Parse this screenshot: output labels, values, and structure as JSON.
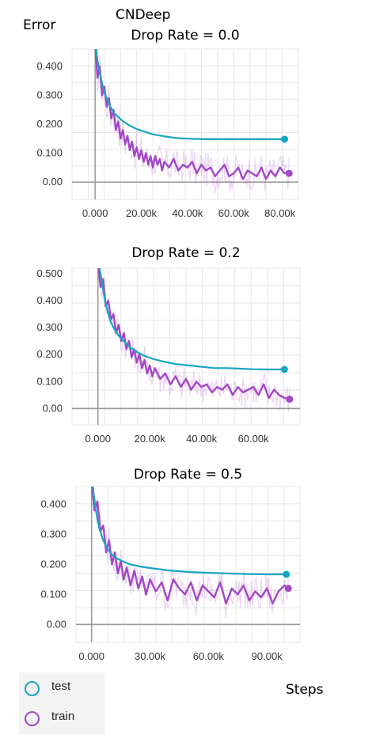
{
  "figure": {
    "suptitle": "CNDeep",
    "ylabel": "Error",
    "xlabel": "Steps"
  },
  "legend": {
    "items": [
      {
        "label": "test",
        "color": "#17a5c2"
      },
      {
        "label": "train",
        "color": "#a347c4"
      }
    ]
  },
  "chart_data": [
    {
      "type": "line",
      "title": "Drop Rate = 0.0",
      "xlim": [
        -10000,
        88000
      ],
      "ylim": [
        -0.06,
        0.46
      ],
      "xticks": [
        0,
        20000,
        40000,
        60000,
        80000
      ],
      "xtick_labels": [
        "0.000",
        "20.00k",
        "40.00k",
        "60.00k",
        "80.00k"
      ],
      "yticks": [
        0.0,
        0.1,
        0.2,
        0.3,
        0.4
      ],
      "ytick_labels": [
        "0.00",
        "0.100",
        "0.200",
        "0.300",
        "0.400"
      ],
      "grid": true,
      "series": [
        {
          "name": "test",
          "color": "#17a5c2",
          "x": [
            0,
            1000,
            2000,
            3000,
            4000,
            5000,
            6000,
            8000,
            10000,
            12000,
            15000,
            18000,
            21000,
            25000,
            30000,
            35000,
            40000,
            50000,
            60000,
            70000,
            80000,
            82000
          ],
          "y": [
            0.5,
            0.42,
            0.38,
            0.34,
            0.31,
            0.29,
            0.27,
            0.24,
            0.225,
            0.21,
            0.195,
            0.183,
            0.175,
            0.165,
            0.158,
            0.152,
            0.15,
            0.148,
            0.148,
            0.148,
            0.148,
            0.148
          ]
        },
        {
          "name": "train",
          "color": "#a347c4",
          "x": [
            0,
            1000,
            2000,
            3000,
            4000,
            5000,
            6000,
            7000,
            8000,
            9000,
            10000,
            11000,
            12000,
            13000,
            14000,
            15000,
            16000,
            17000,
            18000,
            19000,
            20000,
            21000,
            22000,
            23000,
            24000,
            25000,
            26000,
            27000,
            28000,
            29000,
            30000,
            32000,
            34000,
            36000,
            38000,
            40000,
            42000,
            44000,
            46000,
            48000,
            50000,
            52000,
            54000,
            56000,
            58000,
            60000,
            62000,
            64000,
            66000,
            68000,
            70000,
            72000,
            74000,
            76000,
            78000,
            80000,
            82000,
            84000
          ],
          "y": [
            0.48,
            0.36,
            0.4,
            0.3,
            0.33,
            0.26,
            0.29,
            0.22,
            0.25,
            0.18,
            0.21,
            0.15,
            0.18,
            0.13,
            0.16,
            0.11,
            0.14,
            0.09,
            0.12,
            0.08,
            0.11,
            0.07,
            0.1,
            0.06,
            0.09,
            0.05,
            0.09,
            0.06,
            0.08,
            0.04,
            0.07,
            0.05,
            0.08,
            0.04,
            0.06,
            0.05,
            0.07,
            0.03,
            0.06,
            0.04,
            0.05,
            0.02,
            0.04,
            0.06,
            0.02,
            0.03,
            0.05,
            0.01,
            0.04,
            0.03,
            0.02,
            0.05,
            0.01,
            0.04,
            0.02,
            0.05,
            0.03,
            0.03
          ]
        }
      ]
    },
    {
      "type": "line",
      "title": "Drop Rate = 0.2",
      "xlim": [
        -10000,
        78000
      ],
      "ylim": [
        -0.06,
        0.52
      ],
      "xticks": [
        0,
        20000,
        40000,
        60000
      ],
      "xtick_labels": [
        "0.000",
        "20.00k",
        "40.00k",
        "60.00k"
      ],
      "yticks": [
        0.0,
        0.1,
        0.2,
        0.3,
        0.4,
        0.5
      ],
      "ytick_labels": [
        "0.00",
        "0.100",
        "0.200",
        "0.300",
        "0.400",
        "0.500"
      ],
      "grid": true,
      "series": [
        {
          "name": "test",
          "color": "#17a5c2",
          "x": [
            0,
            1000,
            2000,
            3000,
            4000,
            5000,
            6000,
            8000,
            10000,
            12000,
            15000,
            18000,
            21000,
            25000,
            30000,
            35000,
            40000,
            45000,
            50000,
            55000,
            60000,
            65000,
            70000,
            72000
          ],
          "y": [
            0.55,
            0.5,
            0.44,
            0.39,
            0.35,
            0.32,
            0.3,
            0.27,
            0.25,
            0.23,
            0.21,
            0.195,
            0.185,
            0.175,
            0.165,
            0.16,
            0.155,
            0.15,
            0.15,
            0.148,
            0.146,
            0.145,
            0.145,
            0.145
          ]
        },
        {
          "name": "train",
          "color": "#a347c4",
          "x": [
            0,
            1000,
            2000,
            3000,
            4000,
            5000,
            6000,
            7000,
            8000,
            9000,
            10000,
            11000,
            12000,
            13000,
            14000,
            15000,
            16000,
            17000,
            18000,
            19000,
            20000,
            21000,
            22000,
            24000,
            26000,
            28000,
            30000,
            32000,
            34000,
            36000,
            38000,
            40000,
            42000,
            44000,
            46000,
            48000,
            50000,
            52000,
            54000,
            56000,
            58000,
            60000,
            62000,
            64000,
            66000,
            68000,
            70000,
            72000,
            74000
          ],
          "y": [
            0.55,
            0.45,
            0.48,
            0.38,
            0.4,
            0.33,
            0.35,
            0.28,
            0.31,
            0.25,
            0.28,
            0.22,
            0.25,
            0.19,
            0.22,
            0.17,
            0.2,
            0.15,
            0.18,
            0.13,
            0.16,
            0.12,
            0.15,
            0.11,
            0.13,
            0.09,
            0.12,
            0.08,
            0.11,
            0.07,
            0.1,
            0.08,
            0.09,
            0.06,
            0.08,
            0.07,
            0.09,
            0.05,
            0.08,
            0.06,
            0.07,
            0.08,
            0.05,
            0.09,
            0.04,
            0.07,
            0.05,
            0.04,
            0.035
          ]
        }
      ]
    },
    {
      "type": "line",
      "title": "Drop Rate = 0.5",
      "xlim": [
        -8000,
        107000
      ],
      "ylim": [
        -0.06,
        0.46
      ],
      "xticks": [
        0,
        30000,
        60000,
        90000
      ],
      "xtick_labels": [
        "0.000",
        "30.00k",
        "60.00k",
        "90.00k"
      ],
      "yticks": [
        0.0,
        0.1,
        0.2,
        0.3,
        0.4
      ],
      "ytick_labels": [
        "0.00",
        "0.100",
        "0.200",
        "0.300",
        "0.400"
      ],
      "grid": true,
      "series": [
        {
          "name": "test",
          "color": "#17a5c2",
          "x": [
            0,
            1000,
            2000,
            3000,
            4000,
            6000,
            8000,
            10000,
            13000,
            16000,
            20000,
            25000,
            30000,
            40000,
            50000,
            60000,
            70000,
            80000,
            90000,
            100000
          ],
          "y": [
            0.5,
            0.44,
            0.39,
            0.35,
            0.32,
            0.28,
            0.255,
            0.235,
            0.22,
            0.21,
            0.2,
            0.193,
            0.188,
            0.18,
            0.175,
            0.172,
            0.17,
            0.168,
            0.167,
            0.167
          ]
        },
        {
          "name": "train",
          "color": "#a347c4",
          "x": [
            0,
            1500,
            3000,
            4500,
            6000,
            7500,
            9000,
            10500,
            12000,
            13500,
            15000,
            16500,
            18000,
            20000,
            22000,
            24000,
            26000,
            28000,
            30000,
            33000,
            36000,
            39000,
            42000,
            45000,
            48000,
            51000,
            54000,
            57000,
            60000,
            63000,
            66000,
            69000,
            72000,
            75000,
            78000,
            81000,
            84000,
            87000,
            90000,
            93000,
            96000,
            99000,
            101000
          ],
          "y": [
            0.48,
            0.38,
            0.41,
            0.31,
            0.33,
            0.24,
            0.28,
            0.2,
            0.24,
            0.17,
            0.21,
            0.15,
            0.19,
            0.13,
            0.18,
            0.12,
            0.16,
            0.1,
            0.15,
            0.11,
            0.14,
            0.08,
            0.15,
            0.12,
            0.1,
            0.14,
            0.08,
            0.13,
            0.11,
            0.09,
            0.14,
            0.07,
            0.12,
            0.1,
            0.13,
            0.08,
            0.11,
            0.09,
            0.12,
            0.07,
            0.11,
            0.13,
            0.12
          ]
        }
      ]
    }
  ]
}
